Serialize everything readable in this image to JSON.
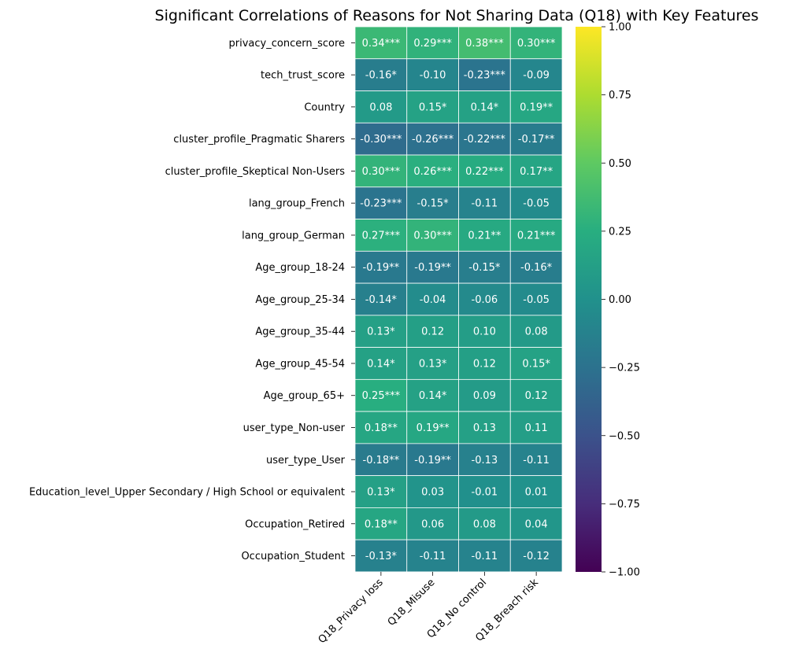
{
  "chart_data": {
    "type": "heatmap",
    "title": "Significant Correlations of Reasons for Not Sharing Data (Q18) with Key Features",
    "xlabel": "",
    "ylabel": "",
    "colormap": "viridis",
    "vmin": -1.0,
    "vmax": 1.0,
    "rows": [
      "privacy_concern_score",
      "tech_trust_score",
      "Country",
      "cluster_profile_Pragmatic Sharers",
      "cluster_profile_Skeptical Non-Users",
      "lang_group_French",
      "lang_group_German",
      "Age_group_18-24",
      "Age_group_25-34",
      "Age_group_35-44",
      "Age_group_45-54",
      "Age_group_65+",
      "user_type_Non-user",
      "user_type_User",
      "Education_level_Upper Secondary / High School or equivalent",
      "Occupation_Retired",
      "Occupation_Student"
    ],
    "columns": [
      "Q18_Privacy loss",
      "Q18_Misuse",
      "Q18_No control",
      "Q18_Breach risk"
    ],
    "values": [
      [
        0.34,
        0.29,
        0.38,
        0.3
      ],
      [
        -0.16,
        -0.1,
        -0.23,
        -0.09
      ],
      [
        0.08,
        0.15,
        0.14,
        0.19
      ],
      [
        -0.3,
        -0.26,
        -0.22,
        -0.17
      ],
      [
        0.3,
        0.26,
        0.22,
        0.17
      ],
      [
        -0.23,
        -0.15,
        -0.11,
        -0.05
      ],
      [
        0.27,
        0.3,
        0.21,
        0.21
      ],
      [
        -0.19,
        -0.19,
        -0.15,
        -0.16
      ],
      [
        -0.14,
        -0.04,
        -0.06,
        -0.05
      ],
      [
        0.13,
        0.12,
        0.1,
        0.08
      ],
      [
        0.14,
        0.13,
        0.12,
        0.15
      ],
      [
        0.25,
        0.14,
        0.09,
        0.12
      ],
      [
        0.18,
        0.19,
        0.13,
        0.11
      ],
      [
        -0.18,
        -0.19,
        -0.13,
        -0.11
      ],
      [
        0.13,
        0.03,
        -0.01,
        0.01
      ],
      [
        0.18,
        0.06,
        0.08,
        0.04
      ],
      [
        -0.13,
        -0.11,
        -0.11,
        -0.12
      ]
    ],
    "annotations": [
      [
        "0.34***",
        "0.29***",
        "0.38***",
        "0.30***"
      ],
      [
        "-0.16*",
        "-0.10",
        "-0.23***",
        "-0.09"
      ],
      [
        "0.08",
        "0.15*",
        "0.14*",
        "0.19**"
      ],
      [
        "-0.30***",
        "-0.26***",
        "-0.22***",
        "-0.17**"
      ],
      [
        "0.30***",
        "0.26***",
        "0.22***",
        "0.17**"
      ],
      [
        "-0.23***",
        "-0.15*",
        "-0.11",
        "-0.05"
      ],
      [
        "0.27***",
        "0.30***",
        "0.21**",
        "0.21***"
      ],
      [
        "-0.19**",
        "-0.19**",
        "-0.15*",
        "-0.16*"
      ],
      [
        "-0.14*",
        "-0.04",
        "-0.06",
        "-0.05"
      ],
      [
        "0.13*",
        "0.12",
        "0.10",
        "0.08"
      ],
      [
        "0.14*",
        "0.13*",
        "0.12",
        "0.15*"
      ],
      [
        "0.25***",
        "0.14*",
        "0.09",
        "0.12"
      ],
      [
        "0.18**",
        "0.19**",
        "0.13",
        "0.11"
      ],
      [
        "-0.18**",
        "-0.19**",
        "-0.13",
        "-0.11"
      ],
      [
        "0.13*",
        "0.03",
        "-0.01",
        "0.01"
      ],
      [
        "0.18**",
        "0.06",
        "0.08",
        "0.04"
      ],
      [
        "-0.13*",
        "-0.11",
        "-0.11",
        "-0.12"
      ]
    ],
    "colorbar_ticks": [
      "1.00",
      "0.75",
      "0.50",
      "0.25",
      "0.00",
      "−0.25",
      "−0.50",
      "−0.75",
      "−1.00"
    ],
    "colorbar_tick_values": [
      1.0,
      0.75,
      0.5,
      0.25,
      0.0,
      -0.25,
      -0.5,
      -0.75,
      -1.0
    ],
    "grid": true,
    "legend": "colorbar-right"
  }
}
